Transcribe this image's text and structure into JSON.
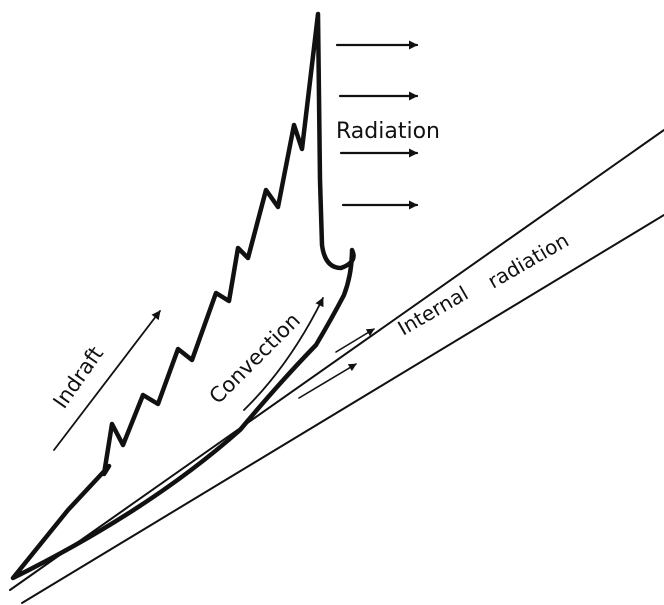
{
  "diagram": {
    "labels": {
      "radiation": "Radiation",
      "internal_radiation_1": "Internal",
      "internal_radiation_2": "radiation",
      "convection": "Convection",
      "indraft": "Indraft"
    },
    "colors": {
      "ink": "#111111",
      "background": "#ffffff"
    }
  }
}
